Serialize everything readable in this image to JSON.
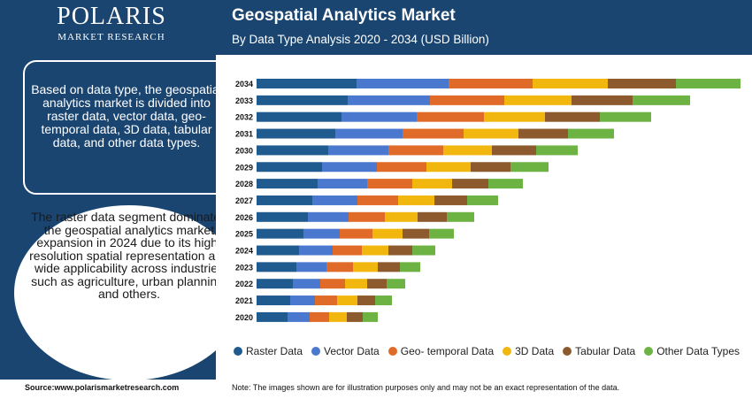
{
  "brand": {
    "name": "POLARIS",
    "sub": "MARKET RESEARCH"
  },
  "header": {
    "title": "Geospatial Analytics Market",
    "subtitle": "By Data Type Analysis 2020 - 2034 (USD Billion)"
  },
  "sidebar": {
    "info_text": "Based on data type, the geospatial analytics market is divided into raster data, vector data, geo-temporal data, 3D data, tabular data, and other data types.",
    "highlight_text": "The raster data segment dominated the geospatial analytics market expansion in 2024 due to its high-resolution spatial representation and wide applicability across industries such as agriculture, urban planning, and others."
  },
  "footer": {
    "source": "Source:www.polarismarketresearch.com",
    "note": "Note: The images shown are for illustration purposes only and may not be an exact representation of the data."
  },
  "chart_data": {
    "type": "bar",
    "orientation": "horizontal",
    "stacked": true,
    "categories": [
      "2034",
      "2033",
      "2032",
      "2031",
      "2030",
      "2029",
      "2028",
      "2027",
      "2026",
      "2025",
      "2024",
      "2023",
      "2022",
      "2021",
      "2020"
    ],
    "series": [
      {
        "name": "Raster Data",
        "color": "#1f5b8e",
        "values": [
          113,
          103,
          96,
          89,
          81,
          74,
          69,
          63,
          58,
          53,
          48,
          45,
          41,
          38,
          35
        ]
      },
      {
        "name": "Vector Data",
        "color": "#4a78cf",
        "values": [
          104,
          93,
          85,
          76,
          68,
          62,
          56,
          51,
          46,
          41,
          38,
          34,
          31,
          28,
          25
        ]
      },
      {
        "name": "Geo- temporal Data",
        "color": "#e06a27",
        "values": [
          95,
          84,
          76,
          69,
          62,
          56,
          51,
          46,
          41,
          37,
          33,
          30,
          28,
          25,
          22
        ]
      },
      {
        "name": "3D Data",
        "color": "#f2b70f",
        "values": [
          85,
          76,
          69,
          62,
          55,
          50,
          45,
          41,
          37,
          34,
          30,
          28,
          25,
          23,
          20
        ]
      },
      {
        "name": "Tabular Data",
        "color": "#8c5a2c",
        "values": [
          77,
          69,
          62,
          56,
          50,
          45,
          41,
          37,
          33,
          30,
          27,
          25,
          22,
          20,
          18
        ]
      },
      {
        "name": "Other Data Types",
        "color": "#6db344",
        "values": [
          73,
          65,
          58,
          52,
          47,
          43,
          39,
          35,
          31,
          28,
          26,
          23,
          21,
          19,
          17
        ]
      }
    ]
  }
}
